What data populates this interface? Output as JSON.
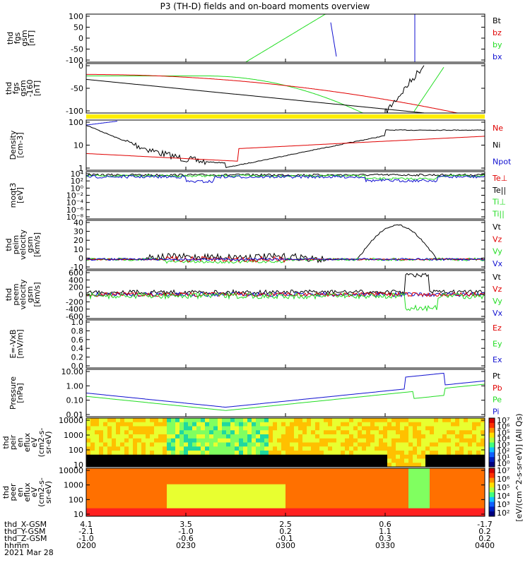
{
  "title": "P3 (TH-D) fields and on-board moments overview",
  "colors": {
    "black": "#000000",
    "red": "#e00000",
    "green": "#22dd22",
    "blue": "#1010d0",
    "yellow": "#ffee00"
  },
  "chart_data": [
    {
      "type": "line",
      "panel": "fgs",
      "ylabel": [
        "thd",
        "fgs",
        "gsm",
        "[nT]"
      ],
      "ylim": [
        -100,
        100
      ],
      "yticks": [
        "100",
        "50",
        "0",
        "-50",
        "-100"
      ],
      "legend": [
        {
          "name": "Bt",
          "color": "black"
        },
        {
          "name": "bz",
          "color": "red"
        },
        {
          "name": "by",
          "color": "green"
        },
        {
          "name": "bx",
          "color": "blue"
        }
      ]
    },
    {
      "type": "line",
      "panel": "fgs-clip",
      "ylabel": [
        "thd",
        "fgs",
        "gsm",
        "-160",
        "[nT]"
      ],
      "ylim": [
        -130,
        20
      ],
      "yticks": [
        "0",
        "-50",
        "-100"
      ]
    },
    {
      "type": "line",
      "panel": "density",
      "scale": "log",
      "ylabel": [
        "Density",
        "[cm-3]"
      ],
      "yticks": [
        "100",
        "10",
        "1"
      ],
      "legend": [
        {
          "name": "Ne",
          "color": "red"
        },
        {
          "name": "Ni",
          "color": "black"
        },
        {
          "name": "Npot",
          "color": "blue"
        }
      ]
    },
    {
      "type": "line",
      "panel": "temperature",
      "scale": "log",
      "ylabel": [
        "moqt3",
        "[eV]"
      ],
      "yticks": [
        "10⁴",
        "10²",
        "10⁰",
        "10⁻²",
        "10⁻⁴",
        "10⁻⁶",
        "10⁻⁸"
      ],
      "legend": [
        {
          "name": "Te⊥",
          "color": "red"
        },
        {
          "name": "Te||",
          "color": "black"
        },
        {
          "name": "Ti⊥",
          "color": "green"
        },
        {
          "name": "Ti||",
          "color": "green"
        }
      ]
    },
    {
      "type": "line",
      "panel": "peim-velocity",
      "ylabel": [
        "thd",
        "peim",
        "velocity",
        "gsm",
        "[km/s]"
      ],
      "ylim": [
        -10,
        40
      ],
      "yticks": [
        "40",
        "30",
        "20",
        "10",
        "0",
        "-10"
      ],
      "legend": [
        {
          "name": "Vt",
          "color": "black"
        },
        {
          "name": "Vz",
          "color": "red"
        },
        {
          "name": "Vy",
          "color": "green"
        },
        {
          "name": "Vx",
          "color": "blue"
        }
      ]
    },
    {
      "type": "line",
      "panel": "peem-velocity",
      "ylabel": [
        "thd",
        "peem",
        "velocity",
        "gsm",
        "[km/s]"
      ],
      "ylim": [
        -600,
        600
      ],
      "yticks": [
        "600",
        "400",
        "200",
        "0",
        "-200",
        "-400",
        "-600"
      ],
      "legend": [
        {
          "name": "Vt",
          "color": "black"
        },
        {
          "name": "Vz",
          "color": "red"
        },
        {
          "name": "Vy",
          "color": "green"
        },
        {
          "name": "Vx",
          "color": "blue"
        }
      ]
    },
    {
      "type": "line",
      "panel": "efield",
      "ylabel": [
        "E=-VxB",
        "[mV/m]"
      ],
      "ylim": [
        0,
        1
      ],
      "yticks": [
        "1.0",
        "0.8",
        "0.6",
        "0.4",
        "0.2",
        "0.0"
      ],
      "legend": [
        {
          "name": "Ez",
          "color": "red"
        },
        {
          "name": "Ey",
          "color": "green"
        },
        {
          "name": "Ex",
          "color": "blue"
        }
      ]
    },
    {
      "type": "line",
      "panel": "pressure",
      "scale": "log",
      "ylabel": [
        "Pressure",
        "[nPa]"
      ],
      "yticks": [
        "10.00",
        "1.00",
        "0.10",
        "0.01"
      ],
      "legend": [
        {
          "name": "Pt",
          "color": "black"
        },
        {
          "name": "Pb",
          "color": "red"
        },
        {
          "name": "Pe",
          "color": "green"
        },
        {
          "name": "Pi",
          "color": "blue"
        }
      ]
    },
    {
      "type": "heatmap",
      "panel": "peir",
      "ylabel": [
        "thd",
        "peir",
        "en",
        "eflux",
        "eV",
        "(cm2-s-",
        "sr-eV)"
      ],
      "yticks": [
        "10000",
        "1000",
        "100",
        "10"
      ]
    },
    {
      "type": "heatmap",
      "panel": "peer",
      "ylabel": [
        "thd",
        "peer",
        "en",
        "eflux",
        "eV",
        "(cm2-s-",
        "sr-eV)"
      ],
      "yticks": [
        "10000",
        "1000",
        "100",
        "10"
      ]
    }
  ],
  "colorbar": {
    "label": "[eV/(cm^2-s-sr-eV)] (All Qs)",
    "upper_ticks": [
      "10⁷",
      "10⁶",
      "10⁵",
      "10⁴",
      "10³",
      "10²",
      "10¹",
      "10⁰"
    ],
    "lower_ticks": [
      "10⁷",
      "10⁶",
      "10⁵",
      "10⁴",
      "10³",
      "10²"
    ]
  },
  "xaxis": {
    "rows": [
      {
        "label": "thd_X-GSM",
        "values": [
          "4.1",
          "3.5",
          "2.5",
          "0.6",
          "-1.7"
        ]
      },
      {
        "label": "thd_Y-GSM",
        "values": [
          "-2.1",
          "-1.0",
          "0.2",
          "1.1",
          "0.2"
        ]
      },
      {
        "label": "thd_Z-GSM",
        "values": [
          "-1.0",
          "-0.6",
          "-0.1",
          "0.3",
          "0.2"
        ]
      },
      {
        "label": "hhmm",
        "values": [
          "0200",
          "0230",
          "0300",
          "0330",
          "0400"
        ]
      }
    ],
    "date": "2021 Mar 28"
  }
}
